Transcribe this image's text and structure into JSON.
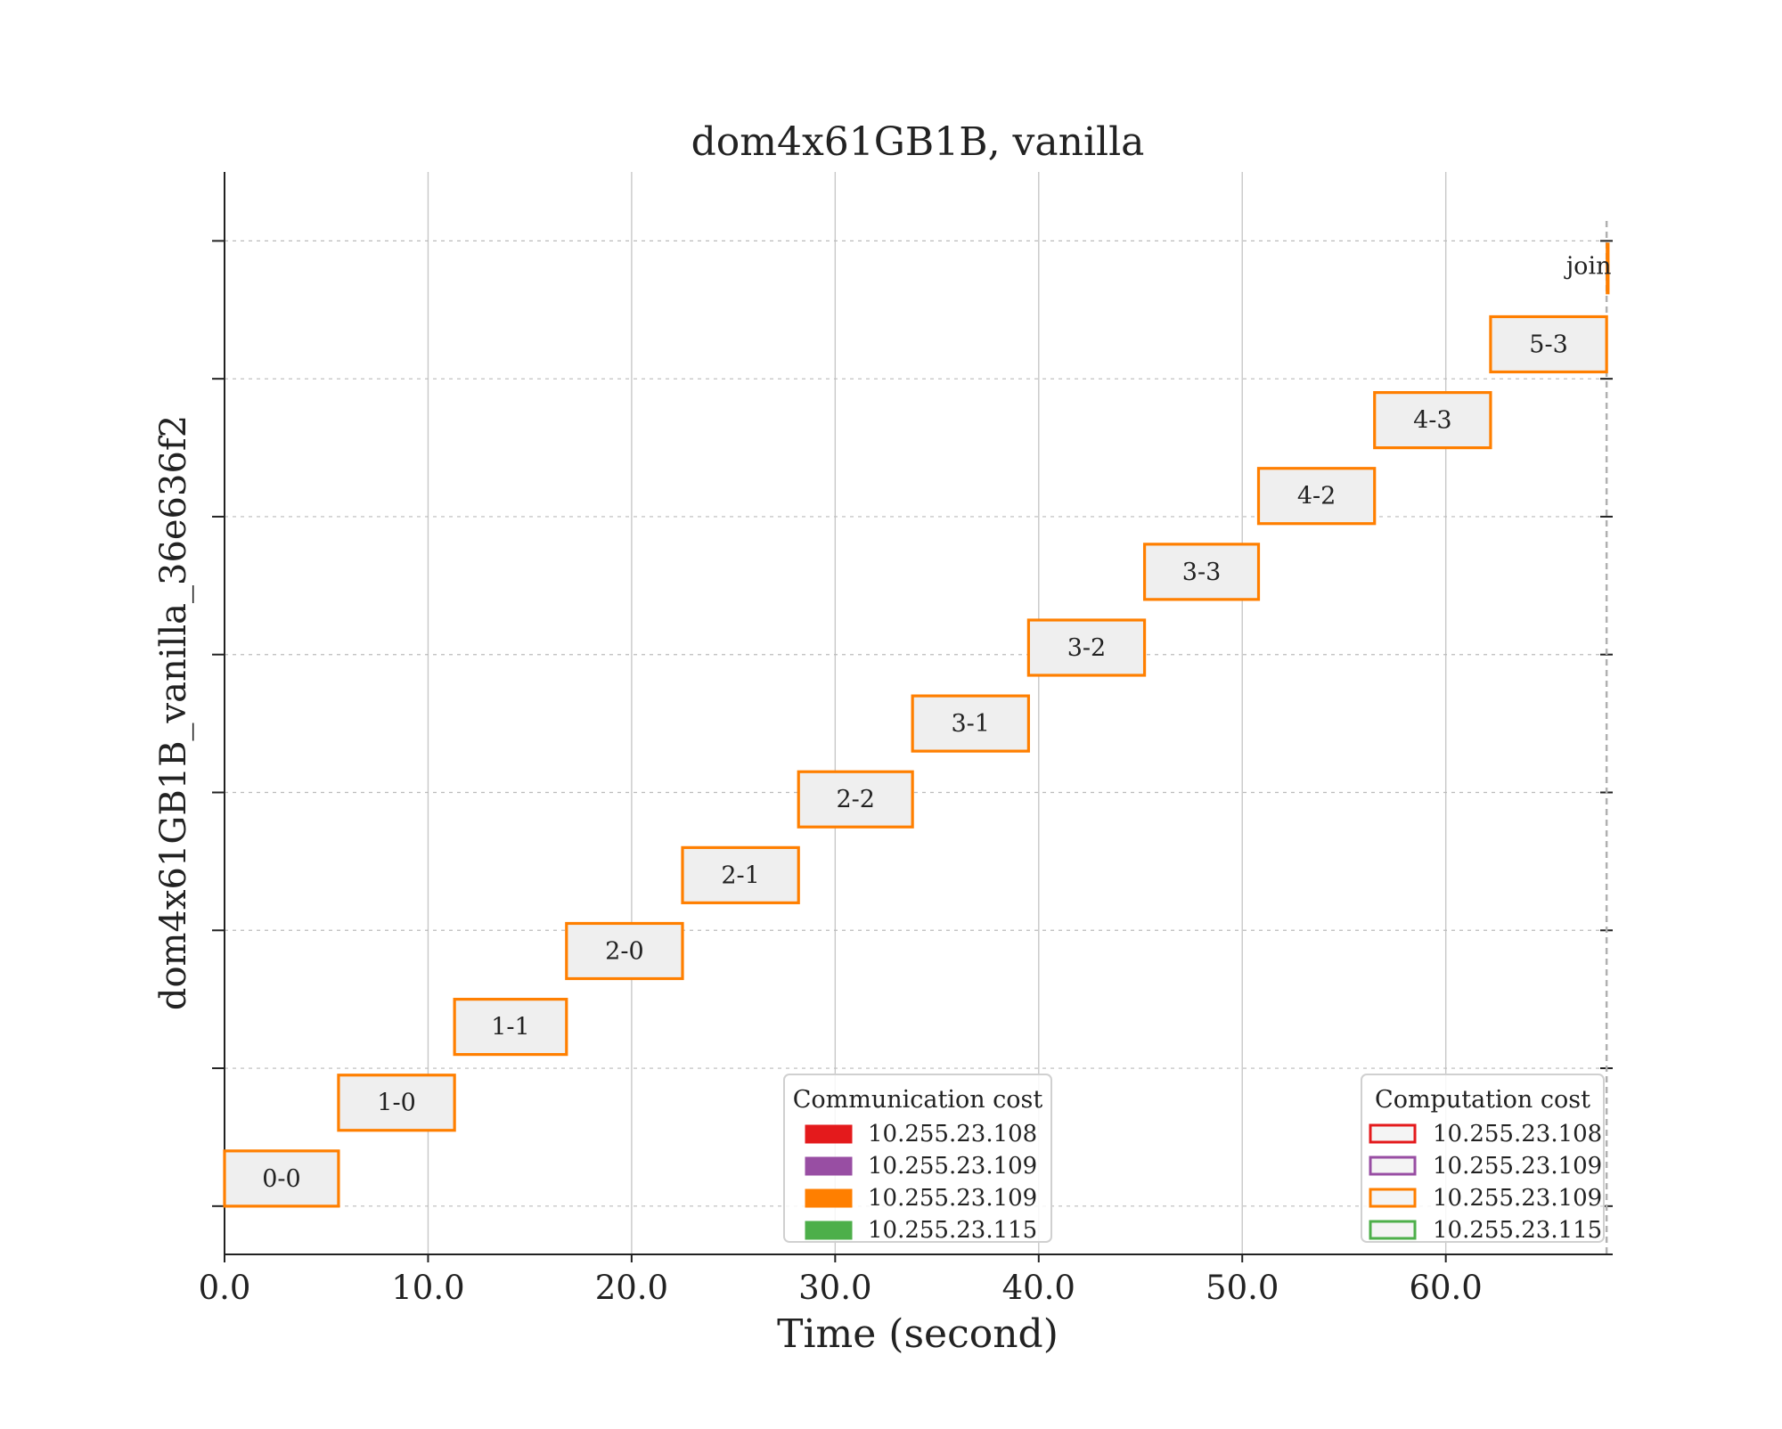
{
  "chart_data": {
    "type": "gantt",
    "title": "dom4x61GB1B, vanilla",
    "xlabel": "Time (second)",
    "ylabel": "dom4x61GB1B_vanilla_36e636f2",
    "xlim": [
      0,
      68.2
    ],
    "x_ticks": [
      0,
      10,
      20,
      30,
      40,
      50,
      60
    ],
    "x_tick_labels": [
      "0.0",
      "10.0",
      "20.0",
      "30.0",
      "40.0",
      "50.0",
      "60.0"
    ],
    "ylim": [
      -0.35,
      7.5
    ],
    "y_ticks": [
      0,
      1,
      2,
      3,
      4,
      5,
      6,
      7
    ],
    "grid": "vertical solid, horizontal dashed",
    "tasks": [
      {
        "label": "0-0",
        "start": 0.0,
        "end": 5.6,
        "row": 0.2,
        "host": "10.255.23.109"
      },
      {
        "label": "1-0",
        "start": 5.6,
        "end": 11.3,
        "row": 0.75,
        "host": "10.255.23.109"
      },
      {
        "label": "1-1",
        "start": 11.3,
        "end": 16.8,
        "row": 1.3,
        "host": "10.255.23.109"
      },
      {
        "label": "2-0",
        "start": 16.8,
        "end": 22.5,
        "row": 1.85,
        "host": "10.255.23.109"
      },
      {
        "label": "2-1",
        "start": 22.5,
        "end": 28.2,
        "row": 2.4,
        "host": "10.255.23.109"
      },
      {
        "label": "2-2",
        "start": 28.2,
        "end": 33.8,
        "row": 2.95,
        "host": "10.255.23.109"
      },
      {
        "label": "3-1",
        "start": 33.8,
        "end": 39.5,
        "row": 3.5,
        "host": "10.255.23.109"
      },
      {
        "label": "3-2",
        "start": 39.5,
        "end": 45.2,
        "row": 4.05,
        "host": "10.255.23.109"
      },
      {
        "label": "3-3",
        "start": 45.2,
        "end": 50.8,
        "row": 4.6,
        "host": "10.255.23.109"
      },
      {
        "label": "4-2",
        "start": 50.8,
        "end": 56.5,
        "row": 5.15,
        "host": "10.255.23.109"
      },
      {
        "label": "4-3",
        "start": 56.5,
        "end": 62.2,
        "row": 5.7,
        "host": "10.255.23.109"
      },
      {
        "label": "5-3",
        "start": 62.2,
        "end": 67.9,
        "row": 6.25,
        "host": "10.255.23.109"
      },
      {
        "label": "join",
        "start": 67.9,
        "end": 68.0,
        "row": 6.8,
        "host": "10.255.23.109"
      }
    ],
    "end_marker": 67.9,
    "legends": [
      {
        "title": "Communication cost",
        "style": "filled",
        "position": "lower-center",
        "entries": [
          {
            "label": "10.255.23.108",
            "color": "#e41a1c"
          },
          {
            "label": "10.255.23.109",
            "color": "#984ea3"
          },
          {
            "label": "10.255.23.109",
            "color": "#ff7f00"
          },
          {
            "label": "10.255.23.115",
            "color": "#4daf4a"
          }
        ]
      },
      {
        "title": "Computation cost",
        "style": "outline",
        "position": "lower-right",
        "entries": [
          {
            "label": "10.255.23.108",
            "color": "#e41a1c"
          },
          {
            "label": "10.255.23.109",
            "color": "#984ea3"
          },
          {
            "label": "10.255.23.109",
            "color": "#ff7f00"
          },
          {
            "label": "10.255.23.115",
            "color": "#4daf4a"
          }
        ]
      }
    ],
    "colors": {
      "task_edge": "#ff7f00",
      "task_fill": "#efefef",
      "grid": "#c8c8c8",
      "axis": "#222222"
    }
  }
}
